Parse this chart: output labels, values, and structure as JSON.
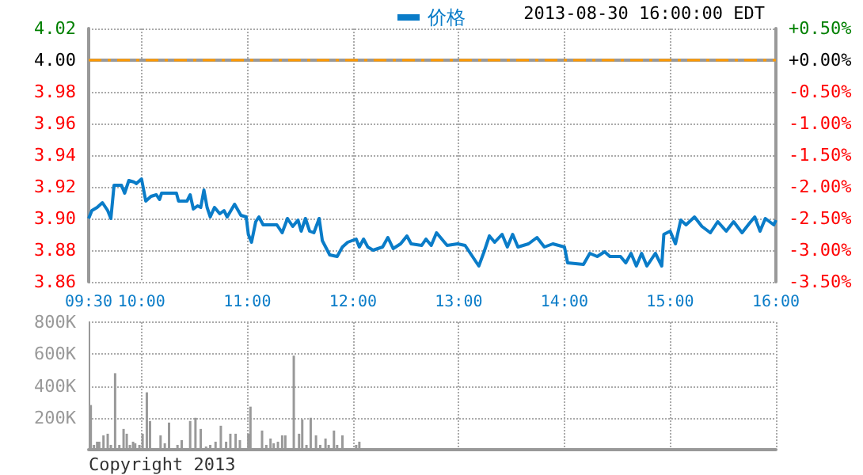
{
  "chart_data": [
    {
      "type": "line",
      "annotations": [
        "2013-08-30 16:00:00 EDT"
      ],
      "legend": "top",
      "grid": true,
      "marker": "none",
      "line_style": "solid",
      "series": [
        {
          "name": "价格",
          "color": "#0a7cc8",
          "x": [
            9.5,
            9.53,
            9.58,
            9.63,
            9.68,
            9.71,
            9.74,
            9.81,
            9.84,
            9.88,
            9.93,
            9.95,
            10,
            10.04,
            10.09,
            10.14,
            10.17,
            10.19,
            10.33,
            10.35,
            10.43,
            10.46,
            10.49,
            10.53,
            10.56,
            10.59,
            10.62,
            10.65,
            10.69,
            10.74,
            10.78,
            10.81,
            10.88,
            10.94,
            10.99,
            11.01,
            11.04,
            11.08,
            11.11,
            11.15,
            11.28,
            11.33,
            11.38,
            11.43,
            11.48,
            11.51,
            11.55,
            11.59,
            11.63,
            11.68,
            11.71,
            11.78,
            11.85,
            11.9,
            11.95,
            12.03,
            12.06,
            12.1,
            12.14,
            12.19,
            12.28,
            12.33,
            12.38,
            12.45,
            12.51,
            12.55,
            12.65,
            12.69,
            12.74,
            12.79,
            12.89,
            12.99,
            13.06,
            13.11,
            13.19,
            13.24,
            13.29,
            13.34,
            13.41,
            13.46,
            13.51,
            13.56,
            13.66,
            13.74,
            13.81,
            13.89,
            14,
            14.03,
            14.18,
            14.24,
            14.31,
            14.38,
            14.43,
            14.53,
            14.58,
            14.63,
            14.68,
            14.73,
            14.78,
            14.86,
            14.92,
            14.94,
            15,
            15.05,
            15.1,
            15.15,
            15.23,
            15.3,
            15.38,
            15.45,
            15.53,
            15.6,
            15.68,
            15.75,
            15.8,
            15.85,
            15.9,
            15.98,
            16
          ],
          "values": [
            3.9,
            3.905,
            3.907,
            3.91,
            3.905,
            3.9,
            3.921,
            3.921,
            3.916,
            3.924,
            3.923,
            3.922,
            3.925,
            3.911,
            3.914,
            3.915,
            3.912,
            3.916,
            3.916,
            3.911,
            3.911,
            3.915,
            3.906,
            3.908,
            3.907,
            3.918,
            3.907,
            3.901,
            3.907,
            3.903,
            3.905,
            3.901,
            3.909,
            3.902,
            3.901,
            3.89,
            3.885,
            3.898,
            3.901,
            3.896,
            3.896,
            3.891,
            3.9,
            3.895,
            3.899,
            3.892,
            3.9,
            3.892,
            3.891,
            3.9,
            3.886,
            3.877,
            3.876,
            3.882,
            3.885,
            3.887,
            3.882,
            3.887,
            3.882,
            3.88,
            3.882,
            3.888,
            3.881,
            3.884,
            3.889,
            3.884,
            3.883,
            3.887,
            3.883,
            3.891,
            3.883,
            3.884,
            3.883,
            3.878,
            3.87,
            3.879,
            3.889,
            3.885,
            3.89,
            3.882,
            3.89,
            3.882,
            3.884,
            3.888,
            3.882,
            3.884,
            3.882,
            3.872,
            3.871,
            3.878,
            3.876,
            3.879,
            3.876,
            3.876,
            3.872,
            3.878,
            3.87,
            3.878,
            3.87,
            3.878,
            3.87,
            3.89,
            3.892,
            3.884,
            3.899,
            3.896,
            3.901,
            3.895,
            3.891,
            3.898,
            3.892,
            3.898,
            3.891,
            3.897,
            3.901,
            3.892,
            3.9,
            3.896,
            3.899
          ]
        }
      ],
      "xlim": [
        9.5,
        16
      ],
      "xticks": [
        {
          "value": 9.5,
          "label": "09:30"
        },
        {
          "value": 10,
          "label": "10:00"
        },
        {
          "value": 11,
          "label": "11:00"
        },
        {
          "value": 12,
          "label": "12:00"
        },
        {
          "value": 13,
          "label": "13:00"
        },
        {
          "value": 14,
          "label": "14:00"
        },
        {
          "value": 15,
          "label": "15:00"
        },
        {
          "value": 16,
          "label": "16:00"
        }
      ],
      "ylim": [
        3.86,
        4.02
      ],
      "yticks": [
        {
          "value": 3.86,
          "label": "3.86"
        },
        {
          "value": 3.88,
          "label": "3.88"
        },
        {
          "value": 3.9,
          "label": "3.90"
        },
        {
          "value": 3.92,
          "label": "3.92"
        },
        {
          "value": 3.94,
          "label": "3.94"
        },
        {
          "value": 3.96,
          "label": "3.96"
        },
        {
          "value": 3.98,
          "label": "3.98"
        },
        {
          "value": 4,
          "label": "4.00"
        },
        {
          "value": 4.02,
          "label": "4.02"
        }
      ],
      "y2lim": [
        -3.5,
        0.5
      ],
      "y2ticks": [
        {
          "value": -3.5,
          "label": "-3.50%"
        },
        {
          "value": -3,
          "label": "-3.00%"
        },
        {
          "value": -2.5,
          "label": "-2.50%"
        },
        {
          "value": -2,
          "label": "-2.00%"
        },
        {
          "value": -1.5,
          "label": "-1.50%"
        },
        {
          "value": -1,
          "label": "-1.00%"
        },
        {
          "value": -0.5,
          "label": "-0.50%"
        },
        {
          "value": 0,
          "label": "+0.00%"
        },
        {
          "value": 0.5,
          "label": "+0.50%"
        }
      ],
      "ref_lines": [
        {
          "axis": "y",
          "value": 4,
          "color": "#ff9900",
          "line_style": "dashed"
        }
      ]
    },
    {
      "type": "bar",
      "annotations": [
        "Copyright 2013"
      ],
      "grid": true,
      "tick_labels": "y",
      "color": "#999999",
      "x": [
        9.52,
        9.55,
        9.58,
        9.6,
        9.64,
        9.68,
        9.71,
        9.75,
        9.79,
        9.83,
        9.86,
        9.89,
        9.92,
        9.94,
        9.98,
        10.01,
        10.05,
        10.08,
        10.13,
        10.18,
        10.22,
        10.26,
        10.3,
        10.34,
        10.38,
        10.46,
        10.51,
        10.56,
        10.61,
        10.65,
        10.7,
        10.75,
        10.8,
        10.84,
        10.89,
        10.93,
        10.97,
        11.01,
        11.03,
        11.08,
        11.14,
        11.18,
        11.22,
        11.25,
        11.29,
        11.33,
        11.36,
        11.4,
        11.44,
        11.49,
        11.52,
        11.56,
        11.6,
        11.65,
        11.69,
        11.74,
        11.77,
        11.82,
        11.85,
        11.9,
        11.95,
        12.03,
        12.06
      ],
      "values": [
        280000,
        30000,
        50000,
        50000,
        90000,
        100000,
        30000,
        480000,
        30000,
        130000,
        100000,
        30000,
        50000,
        40000,
        30000,
        100000,
        360000,
        180000,
        10000,
        90000,
        40000,
        170000,
        10000,
        30000,
        60000,
        180000,
        200000,
        130000,
        20000,
        30000,
        50000,
        150000,
        50000,
        100000,
        100000,
        60000,
        10000,
        100000,
        270000,
        10000,
        120000,
        30000,
        70000,
        40000,
        50000,
        90000,
        90000,
        10000,
        590000,
        100000,
        190000,
        30000,
        200000,
        90000,
        30000,
        70000,
        30000,
        120000,
        30000,
        90000,
        10000,
        30000,
        50000
      ],
      "xlim": [
        9.5,
        16
      ],
      "xticks": [
        9.5,
        10,
        11,
        12,
        13,
        14,
        15,
        16
      ],
      "ylim": [
        0,
        800000
      ],
      "yticks": [
        {
          "value": 0,
          "label": null
        },
        {
          "value": 200000,
          "label": "200K"
        },
        {
          "value": 400000,
          "label": "400K"
        },
        {
          "value": 600000,
          "label": "600K"
        },
        {
          "value": 800000,
          "label": "800K"
        }
      ]
    }
  ]
}
